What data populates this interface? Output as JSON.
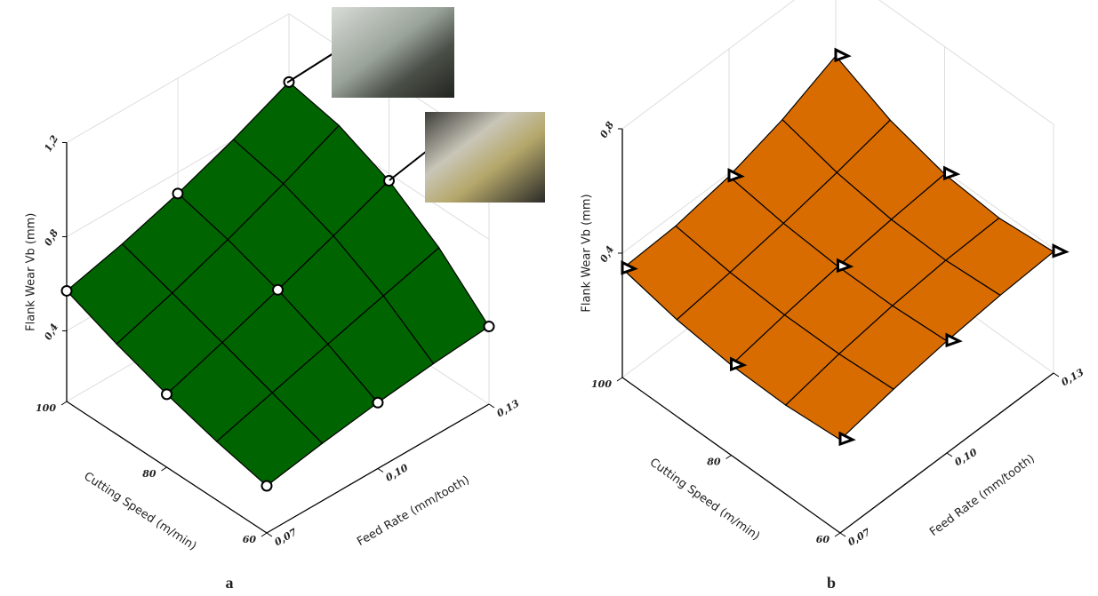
{
  "chart_data": [
    {
      "type": "surface",
      "label": "a",
      "color": "#006400",
      "marker": "circle",
      "zlabel": "Flank Wear Vb (mm)",
      "ylabel": "Cutting Speed (m/min)",
      "xlabel": "Feed Rate (mm/tooth)",
      "xlim": [
        0.07,
        0.13
      ],
      "xticks": [
        {
          "value": 0.07,
          "label": "0,07"
        },
        {
          "value": 0.1,
          "label": "0,10"
        },
        {
          "value": 0.13,
          "label": "0,13"
        }
      ],
      "ylim": [
        60,
        100
      ],
      "yticks": [
        60,
        80,
        100
      ],
      "zlim": [
        0.1,
        1.2
      ],
      "zticks": [
        {
          "value": 0.4,
          "label": "0,4"
        },
        {
          "value": 0.8,
          "label": "0,8"
        },
        {
          "value": 1.2,
          "label": "1,2"
        }
      ],
      "z": [
        [
          0.3,
          0.38,
          0.43
        ],
        [
          0.41,
          0.58,
          0.77
        ],
        [
          0.57,
          0.71,
          0.91
        ]
      ]
    },
    {
      "type": "surface",
      "label": "b",
      "color": "#d96c00",
      "marker": "triangle",
      "zlabel": "Flank Wear Vb (mm)",
      "ylabel": "Cutting Speed (m/min)",
      "xlabel": "Feed Rate (mm/tooth)",
      "xlim": [
        0.07,
        0.13
      ],
      "xticks": [
        {
          "value": 0.07,
          "label": "0,07"
        },
        {
          "value": 0.1,
          "label": "0,10"
        },
        {
          "value": 0.13,
          "label": "0,13"
        }
      ],
      "ylim": [
        60,
        100
      ],
      "yticks": [
        60,
        80,
        100
      ],
      "zlim": [
        0,
        0.8
      ],
      "zticks": [
        {
          "value": 0.4,
          "label": "0,4"
        },
        {
          "value": 0.8,
          "label": "0,8"
        }
      ],
      "z": [
        [
          0.3,
          0.36,
          0.39
        ],
        [
          0.29,
          0.35,
          0.39
        ],
        [
          0.35,
          0.39,
          0.52
        ]
      ]
    }
  ]
}
